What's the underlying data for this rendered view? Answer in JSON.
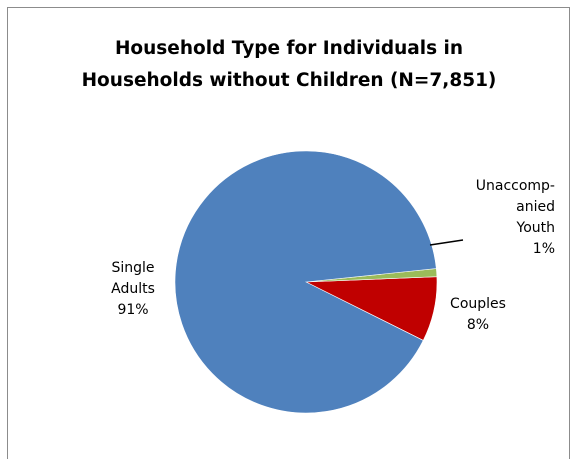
{
  "chart_data": {
    "type": "pie",
    "title_lines": [
      "Household Type for Individuals in",
      "Households without Children (N=7,851)"
    ],
    "slices": [
      {
        "label_lines": [
          "Single",
          "Adults",
          "91%"
        ],
        "value": 91,
        "color": "#4F81BD"
      },
      {
        "label_lines": [
          "Couples",
          "8%"
        ],
        "value": 8,
        "color": "#C00000"
      },
      {
        "label_lines": [
          "Unaccomp-",
          "anied",
          "Youth",
          "1%"
        ],
        "value": 1,
        "color": "#9BBB59"
      }
    ],
    "legend": "none"
  }
}
